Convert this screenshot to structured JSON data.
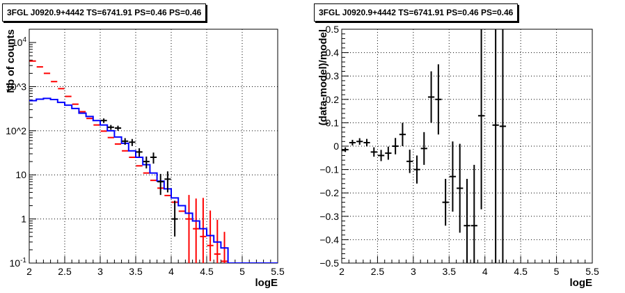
{
  "chart_data": [
    {
      "type": "line",
      "title": "3FGL J0920.9+4442 TS=6741.91 PS=0.46 PS=0.46",
      "xlabel": "logE",
      "ylabel": "Nb of counts",
      "xlim": [
        2,
        5.5
      ],
      "ylim": [
        0.1,
        20000
      ],
      "yscale": "log",
      "grid": true,
      "x_ticks": [
        "2",
        "2.5",
        "3",
        "3.5",
        "4",
        "4.5",
        "5",
        "5.5"
      ],
      "y_ticks": [
        "10^-1",
        "1",
        "10",
        "10^2",
        "10^3",
        "10^4"
      ],
      "series": [
        {
          "color": "#ff0000",
          "style": "points with errors",
          "x": [
            2.05,
            2.15,
            2.25,
            2.35,
            2.45,
            2.55,
            2.65,
            2.75,
            2.85,
            2.95,
            3.05,
            3.15,
            3.25,
            3.35,
            3.45,
            3.55,
            3.65,
            3.75,
            3.85,
            3.95,
            4.05,
            4.15,
            4.25,
            4.35,
            4.45,
            4.55,
            4.65,
            4.75
          ],
          "y": [
            3800,
            2800,
            2000,
            1300,
            900,
            600,
            400,
            270,
            190,
            135,
            98,
            70,
            50,
            35,
            25,
            16,
            11,
            7.5,
            5,
            3.4,
            2.4,
            1.5,
            1.0,
            0.6,
            0.4,
            0.25,
            0.16,
            0.11
          ],
          "yerr_low": [
            0,
            0,
            0,
            0,
            0,
            0,
            0,
            0,
            0,
            0,
            0,
            0,
            0,
            0,
            0,
            0,
            0,
            0,
            0,
            0,
            0,
            0,
            0.9,
            0.5,
            0.3,
            0.14,
            0.06,
            0.01
          ],
          "yerr_high": [
            0,
            0,
            0,
            0,
            0,
            0,
            0,
            0,
            0,
            0,
            0,
            0,
            0,
            0,
            0,
            0,
            0,
            0,
            0,
            0,
            0,
            0,
            2.5,
            2.3,
            2.6,
            1.3,
            0.8,
            0.4
          ]
        },
        {
          "color": "#0000ff",
          "style": "step",
          "x": [
            2.05,
            2.15,
            2.25,
            2.35,
            2.45,
            2.55,
            2.65,
            2.75,
            2.85,
            2.95,
            3.05,
            3.15,
            3.25,
            3.35,
            3.45,
            3.55,
            3.65,
            3.75,
            3.85,
            3.95,
            4.05,
            4.15,
            4.25,
            4.35,
            4.45,
            4.55,
            4.65,
            4.75,
            4.85,
            4.95,
            5.05,
            5.15,
            5.25,
            5.35,
            5.45
          ],
          "y": [
            480,
            520,
            540,
            510,
            440,
            380,
            320,
            250,
            210,
            170,
            135,
            100,
            72,
            52,
            35,
            25,
            17,
            11,
            7.2,
            4.8,
            3.0,
            2.0,
            1.35,
            0.9,
            0.6,
            0.42,
            0.3,
            0.22,
            0.1,
            0.1,
            0.1,
            0.1,
            0.1,
            0.1,
            0.1
          ]
        },
        {
          "color": "#000000",
          "style": "points with errors",
          "x": [
            3.05,
            3.15,
            3.25,
            3.35,
            3.45,
            3.55,
            3.65,
            3.75,
            3.85,
            3.95,
            4.05
          ],
          "y": [
            170,
            120,
            115,
            58,
            55,
            33,
            20,
            25,
            7.0,
            8.0,
            1.0
          ],
          "yerr_low": [
            20,
            15,
            15,
            10,
            10,
            7,
            6,
            7,
            3.5,
            4,
            0.6
          ],
          "yerr_high": [
            20,
            15,
            15,
            10,
            10,
            7,
            6,
            7,
            3.5,
            4,
            1.6
          ]
        }
      ]
    },
    {
      "type": "scatter",
      "title": "3FGL J0920.9+4442 TS=6741.91 PS=0.46 PS=0.46",
      "xlabel": "logE",
      "ylabel": "(data-model)/model",
      "xlim": [
        2,
        5.5
      ],
      "ylim": [
        -0.5,
        0.5
      ],
      "grid": true,
      "x_ticks": [
        "2",
        "2.5",
        "3",
        "3.5",
        "4",
        "4.5",
        "5",
        "5.5"
      ],
      "y_ticks": [
        "−0.5",
        "−0.4",
        "−0.3",
        "−0.2",
        "−0.1",
        "0",
        "0.1",
        "0.2",
        "0.3",
        "0.4",
        "0.5"
      ],
      "series": [
        {
          "color": "#000000",
          "x": [
            2.05,
            2.15,
            2.25,
            2.35,
            2.45,
            2.55,
            2.65,
            2.75,
            2.85,
            2.95,
            3.05,
            3.15,
            3.25,
            3.35,
            3.45,
            3.55,
            3.65,
            3.75,
            3.85,
            3.95,
            4.15,
            4.25
          ],
          "y": [
            -0.015,
            0.015,
            0.02,
            0.015,
            -0.025,
            -0.04,
            -0.03,
            0.0,
            0.05,
            -0.065,
            -0.1,
            -0.01,
            0.21,
            0.2,
            -0.24,
            -0.13,
            -0.18,
            -0.34,
            -0.34,
            0.13,
            0.09,
            0.085
          ],
          "yerr": [
            0.01,
            0.012,
            0.014,
            0.016,
            0.02,
            0.024,
            0.028,
            0.035,
            0.05,
            0.05,
            0.06,
            0.07,
            0.11,
            0.15,
            0.1,
            0.15,
            0.19,
            0.2,
            0.26,
            0.4,
            0.6,
            0.6
          ]
        }
      ]
    }
  ]
}
